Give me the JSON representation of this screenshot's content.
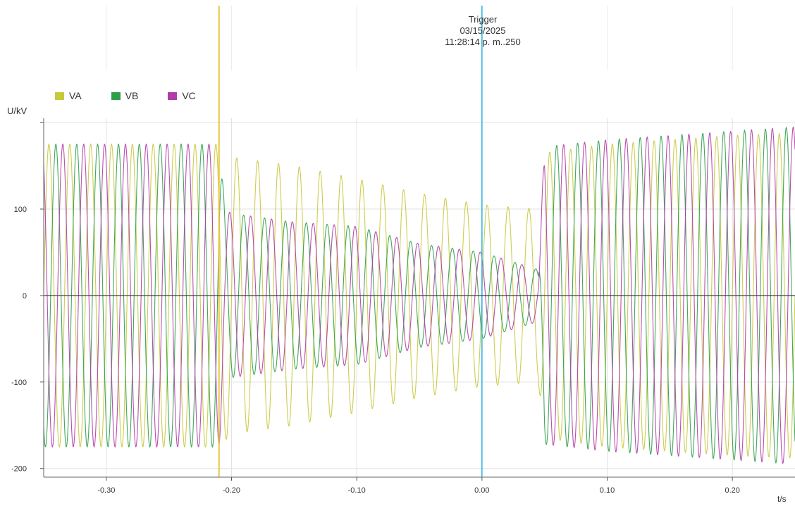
{
  "trigger": {
    "title": "Trigger",
    "date": "03/15/2025",
    "time": "11:28:14 p. m..250",
    "color": "#33b5e5"
  },
  "marker": {
    "t": -0.21,
    "color": "#e8c840"
  },
  "chart_data": {
    "type": "line",
    "title": "",
    "xlabel": "t/s",
    "ylabel": "U/kV",
    "xlim": [
      -0.35,
      0.25
    ],
    "ylim": [
      -210,
      205
    ],
    "xticks": [
      -0.3,
      -0.2,
      -0.1,
      0.0,
      0.1,
      0.2
    ],
    "xtick_labels": [
      "-0.30",
      "-0.20",
      "-0.10",
      "0.00",
      "0.10",
      "0.20"
    ],
    "yticks": [
      -200,
      -100,
      0,
      100
    ],
    "ytick_labels": [
      "-200",
      "-100",
      "0",
      "100"
    ],
    "grid": true,
    "legend_position": "top-left",
    "frequency_hz": 60,
    "series": [
      {
        "name": "VA",
        "color": "#c8c83c",
        "phase_deg": 0,
        "envelope": [
          [
            -0.35,
            175
          ],
          [
            -0.21,
            175
          ],
          [
            -0.2,
            160
          ],
          [
            -0.15,
            150
          ],
          [
            -0.1,
            135
          ],
          [
            -0.05,
            118
          ],
          [
            0.0,
            105
          ],
          [
            0.045,
            100
          ],
          [
            0.05,
            165
          ],
          [
            0.1,
            175
          ],
          [
            0.2,
            185
          ],
          [
            0.25,
            188
          ]
        ]
      },
      {
        "name": "VB",
        "color": "#2e9e48",
        "phase_deg": -120,
        "envelope": [
          [
            -0.35,
            175
          ],
          [
            -0.21,
            175
          ],
          [
            -0.205,
            100
          ],
          [
            -0.2,
            95
          ],
          [
            -0.15,
            85
          ],
          [
            -0.1,
            80
          ],
          [
            -0.05,
            60
          ],
          [
            0.0,
            50
          ],
          [
            0.045,
            30
          ],
          [
            0.05,
            172
          ],
          [
            0.1,
            180
          ],
          [
            0.2,
            190
          ],
          [
            0.25,
            195
          ]
        ]
      },
      {
        "name": "VC",
        "color": "#b03ca8",
        "phase_deg": 120,
        "envelope": [
          [
            -0.35,
            175
          ],
          [
            -0.21,
            175
          ],
          [
            -0.205,
            100
          ],
          [
            -0.2,
            95
          ],
          [
            -0.15,
            85
          ],
          [
            -0.1,
            80
          ],
          [
            -0.05,
            60
          ],
          [
            0.0,
            50
          ],
          [
            0.045,
            30
          ],
          [
            0.05,
            172
          ],
          [
            0.1,
            180
          ],
          [
            0.2,
            190
          ],
          [
            0.25,
            195
          ]
        ]
      }
    ]
  }
}
